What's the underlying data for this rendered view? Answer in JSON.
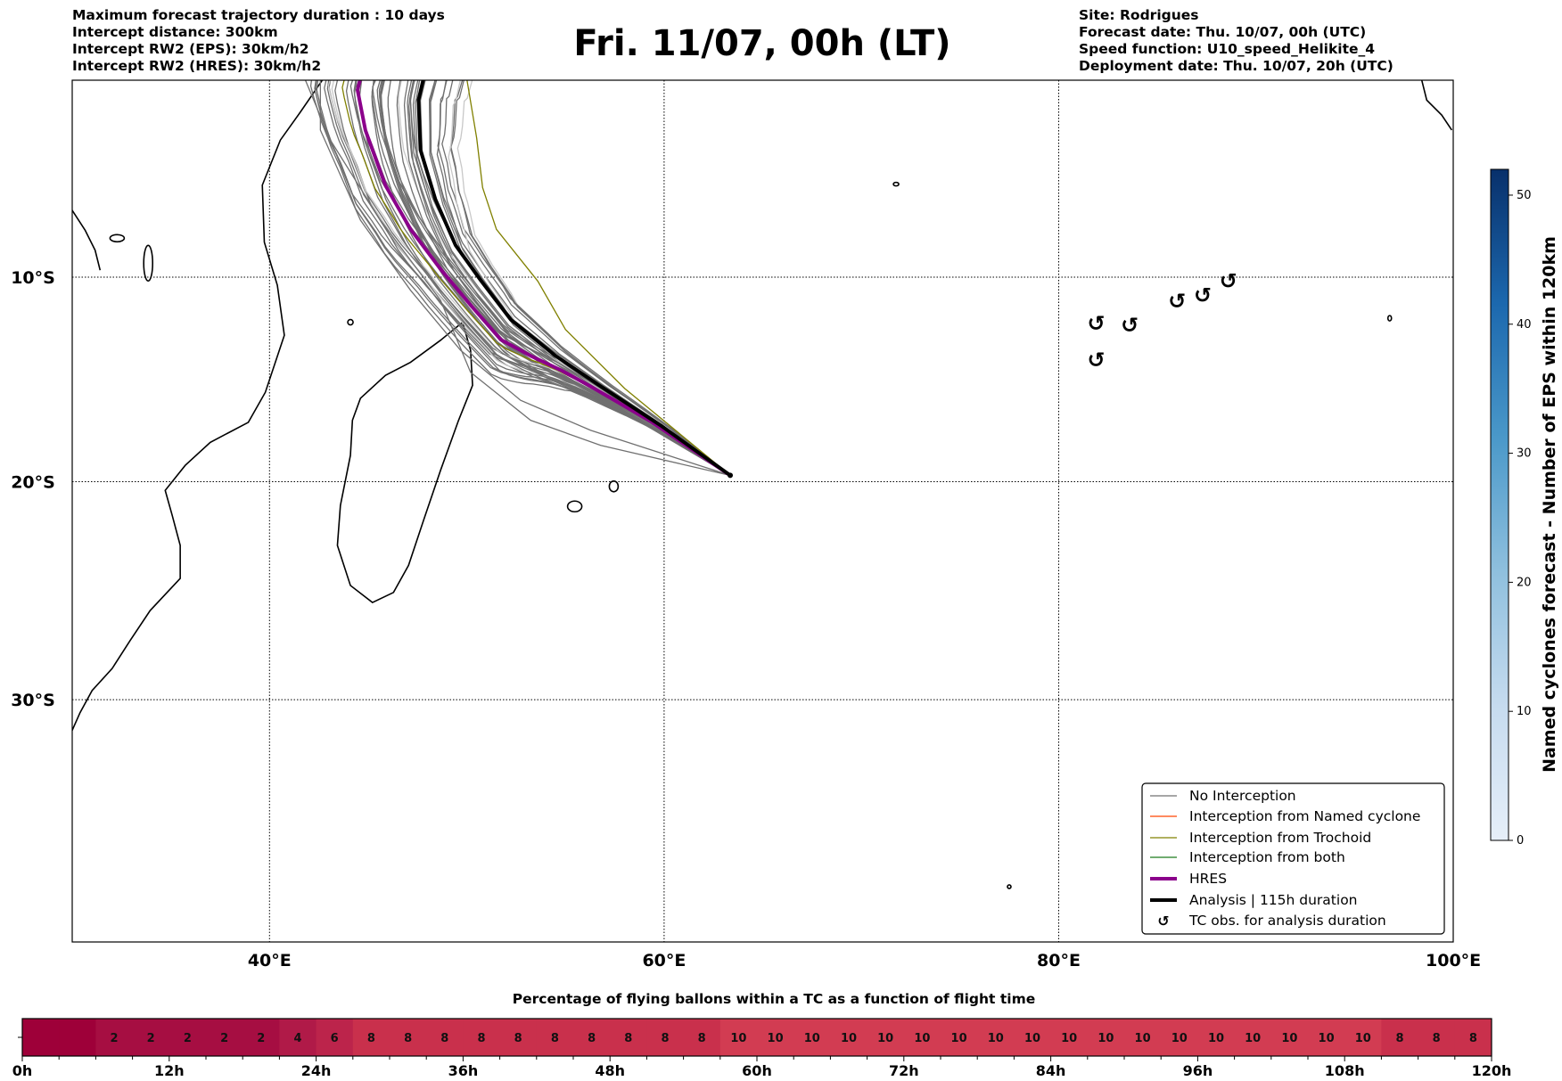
{
  "header": {
    "left_lines": [
      "Maximum forecast trajectory duration : 10 days",
      "Intercept distance: 300km",
      "Intercept RW2 (EPS):  30km/h2",
      "Intercept RW2 (HRES): 30km/h2"
    ],
    "title": "Fri. 11/07, 00h (LT)",
    "right_lines": [
      "Site: Rodrigues",
      "Forecast date: Thu. 10/07, 00h (UTC)",
      "Speed function: U10_speed_Helikite_4",
      "Deployment date: Thu. 10/07, 20h (UTC)"
    ]
  },
  "map": {
    "lon_range": [
      30,
      100
    ],
    "lat_range": [
      0,
      -40
    ],
    "lon_ticks": [
      {
        "v": 40,
        "label": "40°E"
      },
      {
        "v": 60,
        "label": "60°E"
      },
      {
        "v": 80,
        "label": "80°E"
      },
      {
        "v": 100,
        "label": "100°E"
      }
    ],
    "lat_ticks": [
      {
        "v": -10,
        "label": "10°S"
      },
      {
        "v": -20,
        "label": "20°S"
      },
      {
        "v": -30,
        "label": "30°S"
      }
    ],
    "site": {
      "lon": 63.35,
      "lat": -19.7
    },
    "analysis_track": [
      [
        63.35,
        -19.7
      ],
      [
        59.83,
        -17.3
      ],
      [
        56.79,
        -15.4
      ],
      [
        54.5,
        -13.9
      ],
      [
        52.22,
        -12.1
      ],
      [
        50.7,
        -10.15
      ],
      [
        49.43,
        -8.4
      ],
      [
        48.41,
        -6.1
      ],
      [
        47.65,
        -3.6
      ],
      [
        47.55,
        -1.07
      ],
      [
        47.8,
        0
      ]
    ],
    "hres_track": [
      [
        63.35,
        -19.7
      ],
      [
        59.32,
        -17.1
      ],
      [
        56.28,
        -15.4
      ],
      [
        54.76,
        -14.6
      ],
      [
        53.24,
        -13.9
      ],
      [
        51.72,
        -13.1
      ],
      [
        50.2,
        -11.4
      ],
      [
        48.67,
        -9.6
      ],
      [
        47.15,
        -7.6
      ],
      [
        45.88,
        -5.4
      ],
      [
        44.86,
        -2.6
      ],
      [
        44.46,
        -0.56
      ],
      [
        44.6,
        0
      ]
    ],
    "trochoid_track": [
      [
        63.35,
        -19.7
      ],
      [
        58.0,
        -15.5
      ],
      [
        55.0,
        -12.6
      ],
      [
        53.6,
        -10.2
      ],
      [
        51.5,
        -7.6
      ],
      [
        50.8,
        -5.5
      ],
      [
        50.5,
        -3.0
      ],
      [
        50.0,
        0
      ]
    ],
    "tc_obs": [
      [
        81.9,
        -12.3
      ],
      [
        81.9,
        -14.1
      ],
      [
        83.6,
        -12.4
      ],
      [
        86.0,
        -11.2
      ],
      [
        87.3,
        -10.9
      ],
      [
        88.6,
        -10.2
      ]
    ],
    "colors": {
      "no_interception": "#707070",
      "named_cyclone": "#ff4500",
      "trochoid": "#808000",
      "both": "#1a7a1a",
      "hres": "#8b008b",
      "analysis": "#000000"
    }
  },
  "legend": {
    "items": [
      {
        "label": "No Interception",
        "kind": "no_interception"
      },
      {
        "label": "Interception from Named cyclone",
        "kind": "named_cyclone"
      },
      {
        "label": "Interception from Trochoid",
        "kind": "trochoid"
      },
      {
        "label": "Interception from both",
        "kind": "both"
      },
      {
        "label": "HRES",
        "kind": "hres"
      },
      {
        "label": "Analysis | 115h duration",
        "kind": "analysis"
      },
      {
        "label": "TC obs. for analysis duration",
        "kind": "tc_obs"
      }
    ]
  },
  "colorbar": {
    "label": "Named cyclones forecast - Number of EPS within 120km",
    "range": [
      0,
      52
    ],
    "ticks": [
      "0",
      "10",
      "20",
      "30",
      "40",
      "50"
    ],
    "tick_values": [
      0,
      10,
      20,
      30,
      40,
      50
    ]
  },
  "strip": {
    "title": "Percentage of flying ballons within a TC as a function of flight time",
    "values": [
      0,
      0,
      2,
      2,
      2,
      2,
      2,
      4,
      6,
      8,
      8,
      8,
      8,
      8,
      8,
      8,
      8,
      8,
      8,
      10,
      10,
      10,
      10,
      10,
      10,
      10,
      10,
      10,
      10,
      10,
      10,
      10,
      10,
      10,
      10,
      10,
      10,
      8,
      8,
      8
    ],
    "tick_labels": [
      "0h",
      "12h",
      "24h",
      "36h",
      "48h",
      "60h",
      "72h",
      "84h",
      "96h",
      "108h",
      "120h"
    ],
    "colors": {
      "0": "#9e0039",
      "2": "#a60e42",
      "4": "#b01a48",
      "6": "#bc244b",
      "8": "#c9304c",
      "10": "#d23c52"
    }
  }
}
